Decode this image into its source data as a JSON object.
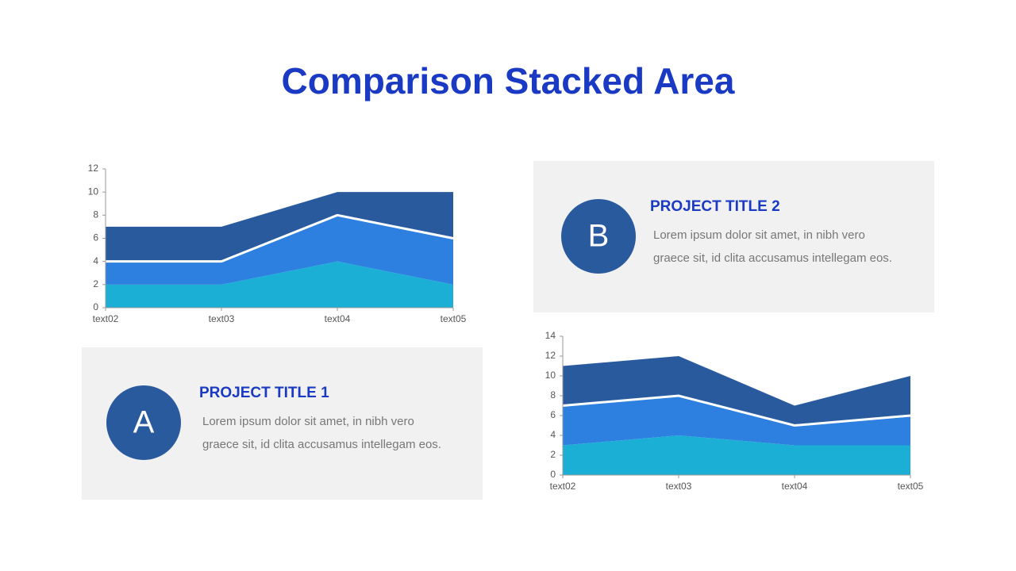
{
  "title": "Comparison Stacked Area",
  "cards": [
    {
      "letter": "A",
      "title": "PROJECT TITLE 1",
      "lines": [
        "Lorem ipsum dolor sit amet, in nibh vero",
        "graece sit, id clita accusamus intellegam eos."
      ]
    },
    {
      "letter": "B",
      "title": "PROJECT TITLE 2",
      "lines": [
        "Lorem ipsum dolor sit amet, in nibh vero",
        "graece sit, id clita accusamus intellegam eos."
      ]
    }
  ],
  "chart_data": [
    {
      "type": "stacked_area",
      "categories": [
        "text02",
        "text03",
        "text04",
        "text05"
      ],
      "series": [
        {
          "color": "#1bafd6",
          "values": [
            2,
            2,
            4,
            2
          ]
        },
        {
          "color": "#2d7fe0",
          "values": [
            2,
            2,
            4,
            4
          ]
        },
        {
          "color": "#2a5a9e",
          "values": [
            3,
            3,
            2,
            4
          ]
        }
      ],
      "ylim": [
        0,
        12
      ],
      "yticks": [
        0,
        2,
        4,
        6,
        8,
        10,
        12
      ]
    },
    {
      "type": "stacked_area",
      "categories": [
        "text02",
        "text03",
        "text04",
        "text05"
      ],
      "series": [
        {
          "color": "#1bafd6",
          "values": [
            3,
            4,
            3,
            3
          ]
        },
        {
          "color": "#2d7fe0",
          "values": [
            4,
            4,
            2,
            3
          ]
        },
        {
          "color": "#2a5a9e",
          "values": [
            4,
            4,
            2,
            4
          ]
        }
      ],
      "ylim": [
        0,
        14
      ],
      "yticks": [
        0,
        2,
        4,
        6,
        8,
        10,
        12,
        14
      ]
    }
  ]
}
